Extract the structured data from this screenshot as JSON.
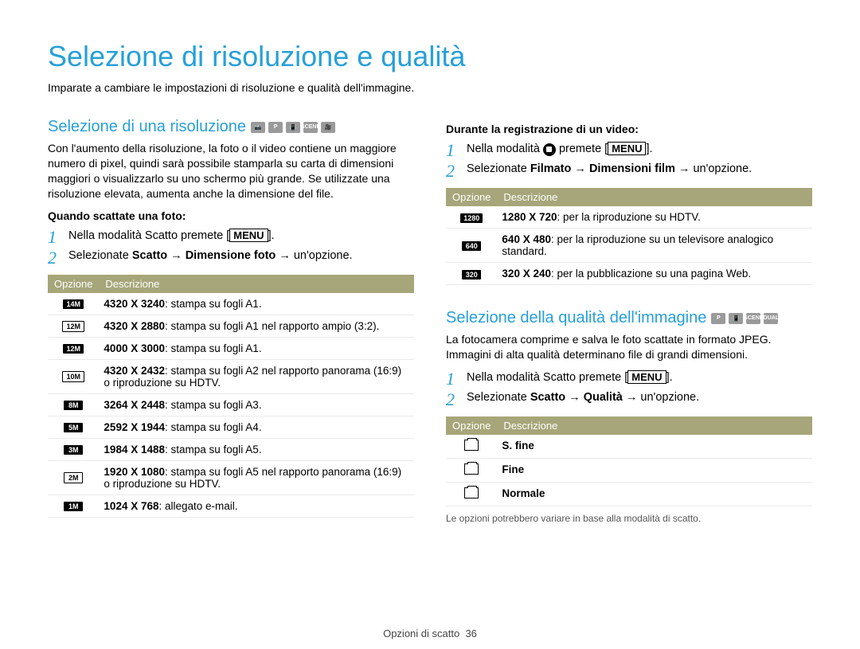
{
  "colors": {
    "accent": "#26a0d9",
    "table_header_bg": "#a7a67a",
    "text": "#000000",
    "muted": "#555555"
  },
  "page_title": "Selezione di risoluzione e qualità",
  "intro": "Imparate a cambiare le impostazioni di risoluzione e qualità dell'immagine.",
  "left": {
    "heading": "Selezione di una risoluzione",
    "mode_icons": [
      "📷",
      "P",
      "📳",
      "SCENE",
      "🎥"
    ],
    "desc": "Con l'aumento della risoluzione, la foto o il video contiene un maggiore numero di pixel, quindi sarà possibile stamparla su carta di dimensioni maggiori o visualizzarlo su uno schermo più grande. Se utilizzate una risoluzione elevata, aumenta anche la dimensione del file.",
    "subhead": "Quando scattate una foto:",
    "step1_pre": "Nella modalità Scatto premete [",
    "step1_btn": "MENU",
    "step1_post": "].",
    "step2_a": "Selezionate ",
    "step2_b": "Scatto",
    "step2_c": " → ",
    "step2_d": "Dimensione foto",
    "step2_e": " → un'opzione.",
    "table_h1": "Opzione",
    "table_h2": "Descrizione",
    "rows": [
      {
        "icon": "14M",
        "style": "solid",
        "bold": "4320 X 3240",
        "rest": ": stampa su fogli A1."
      },
      {
        "icon": "12M",
        "style": "outline",
        "bold": "4320 X 2880",
        "rest": ": stampa su fogli A1 nel rapporto ampio (3:2)."
      },
      {
        "icon": "12M",
        "style": "solid",
        "bold": "4000 X 3000",
        "rest": ": stampa su fogli A1."
      },
      {
        "icon": "10M",
        "style": "outline",
        "bold": "4320 X 2432",
        "rest": ": stampa su fogli A2 nel rapporto panorama (16:9) o riproduzione su HDTV."
      },
      {
        "icon": "8M",
        "style": "solid",
        "bold": "3264 X 2448",
        "rest": ": stampa su fogli A3."
      },
      {
        "icon": "5M",
        "style": "solid",
        "bold": "2592 X 1944",
        "rest": ": stampa su fogli A4."
      },
      {
        "icon": "3M",
        "style": "solid",
        "bold": "1984 X 1488",
        "rest": ": stampa su fogli A5."
      },
      {
        "icon": "2M",
        "style": "outline",
        "bold": "1920 X 1080",
        "rest": ": stampa su fogli A5 nel rapporto panorama (16:9) o riproduzione su HDTV."
      },
      {
        "icon": "1M",
        "style": "solid",
        "bold": "1024 X 768",
        "rest": ": allegato e-mail."
      }
    ]
  },
  "right_top": {
    "subhead": "Durante la registrazione di un video:",
    "step1_a": "Nella modalità ",
    "step1_b": " premete [",
    "step1_btn": "MENU",
    "step1_c": "].",
    "step2_a": "Selezionate ",
    "step2_b": "Filmato",
    "step2_c": " → ",
    "step2_d": "Dimensioni film",
    "step2_e": " → un'opzione.",
    "table_h1": "Opzione",
    "table_h2": "Descrizione",
    "rows": [
      {
        "icon": "1280",
        "bold": "1280 X 720",
        "rest": ": per la riproduzione su HDTV."
      },
      {
        "icon": "640",
        "bold": "640 X 480",
        "rest": ": per la riproduzione su un televisore analogico standard."
      },
      {
        "icon": "320",
        "bold": "320 X 240",
        "rest": ": per la pubblicazione su una pagina Web."
      }
    ]
  },
  "right_bottom": {
    "heading": "Selezione della qualità dell'immagine",
    "mode_icons": [
      "P",
      "📳",
      "SCENE",
      "DUAL"
    ],
    "desc": "La fotocamera comprime e salva le foto scattate in formato JPEG. Immagini di alta qualità determinano file di grandi dimensioni.",
    "step1_pre": "Nella modalità Scatto premete [",
    "step1_btn": "MENU",
    "step1_post": "].",
    "step2_a": "Selezionate ",
    "step2_b": "Scatto",
    "step2_c": " → ",
    "step2_d": "Qualità",
    "step2_e": " → un'opzione.",
    "table_h1": "Opzione",
    "table_h2": "Descrizione",
    "rows": [
      {
        "label": "S. fine"
      },
      {
        "label": "Fine"
      },
      {
        "label": "Normale"
      }
    ],
    "footnote": "Le opzioni potrebbero variare in base alla modalità di scatto."
  },
  "footer_a": "Opzioni di scatto",
  "footer_b": "36"
}
